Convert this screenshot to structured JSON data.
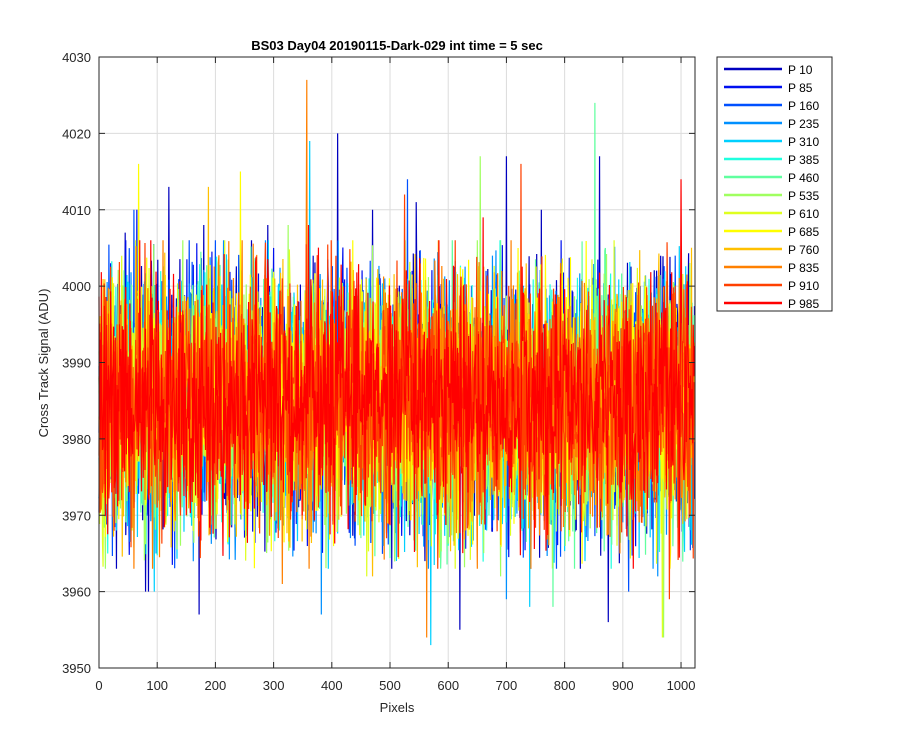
{
  "chart_data": {
    "type": "line",
    "title": "BS03 Day04 20190115-Dark-029 int time = 5 sec",
    "xlabel": "Pixels",
    "ylabel": "Cross Track Signal (ADU)",
    "xlim": [
      0,
      1024
    ],
    "ylim": [
      3950,
      4030
    ],
    "xticks": [
      0,
      100,
      200,
      300,
      400,
      500,
      600,
      700,
      800,
      900,
      1000
    ],
    "yticks": [
      3950,
      3960,
      3970,
      3980,
      3990,
      4000,
      4010,
      4020,
      4030
    ],
    "grid": true,
    "legend_position": "outside-top-right",
    "noise_model": {
      "center": 3985,
      "spread_sd": 8,
      "n_points": 1024
    },
    "series": [
      {
        "name": "P 10",
        "color": "#0000BF",
        "seed": 11,
        "spikes": [
          [
            172,
            3957
          ],
          [
            80,
            3960
          ],
          [
            85,
            3960
          ],
          [
            410,
            4020
          ],
          [
            700,
            4017
          ],
          [
            860,
            4017
          ],
          [
            620,
            3955
          ],
          [
            875,
            3956
          ],
          [
            45,
            4007
          ],
          [
            120,
            4013
          ],
          [
            180,
            4008
          ],
          [
            290,
            4008
          ],
          [
            470,
            4010
          ],
          [
            545,
            4011
          ],
          [
            760,
            4010
          ],
          [
            560,
            3964
          ]
        ]
      },
      {
        "name": "P 85",
        "color": "#0010F0",
        "seed": 23,
        "spikes": [
          [
            20,
            4003
          ],
          [
            65,
            4010
          ],
          [
            300,
            4005
          ],
          [
            480,
            4001
          ],
          [
            640,
            4000
          ],
          [
            930,
            4000
          ]
        ]
      },
      {
        "name": "P 160",
        "color": "#0050FF",
        "seed": 37,
        "spikes": [
          [
            60,
            4010
          ],
          [
            200,
            4006
          ],
          [
            530,
            4014
          ],
          [
            990,
            4004
          ],
          [
            910,
            3960
          ],
          [
            440,
            3966
          ]
        ]
      },
      {
        "name": "P 235",
        "color": "#0090FF",
        "seed": 41,
        "spikes": [
          [
            382,
            3957
          ],
          [
            250,
            3968
          ],
          [
            700,
            3959
          ],
          [
            960,
            3962
          ],
          [
            590,
            3971
          ],
          [
            98,
            3965
          ]
        ]
      },
      {
        "name": "P 310",
        "color": "#00D0FF",
        "seed": 53,
        "spikes": [
          [
            362,
            4019
          ],
          [
            95,
            3960
          ],
          [
            570,
            3953
          ],
          [
            740,
            3958
          ],
          [
            30,
            3968
          ],
          [
            835,
            3964
          ]
        ]
      },
      {
        "name": "P 385",
        "color": "#20FFDF",
        "seed": 67,
        "spikes": [
          [
            15,
            3965
          ],
          [
            310,
            3968
          ],
          [
            600,
            3966
          ],
          [
            880,
            3963
          ],
          [
            500,
            3969
          ]
        ]
      },
      {
        "name": "P 460",
        "color": "#60FF9F",
        "seed": 79,
        "spikes": [
          [
            852,
            4024
          ],
          [
            10,
            3971
          ],
          [
            450,
            3967
          ],
          [
            780,
            3958
          ],
          [
            670,
            3970
          ]
        ]
      },
      {
        "name": "P 535",
        "color": "#A0FF60",
        "seed": 83,
        "spikes": [
          [
            655,
            4017
          ],
          [
            325,
            4008
          ],
          [
            970,
            3954
          ],
          [
            140,
            3966
          ],
          [
            690,
            3962
          ]
        ]
      },
      {
        "name": "P 610",
        "color": "#DFFF20",
        "seed": 97,
        "spikes": [
          [
            968,
            3954
          ],
          [
            460,
            3962
          ],
          [
            890,
            3966
          ],
          [
            250,
            3972
          ]
        ]
      },
      {
        "name": "P 685",
        "color": "#FFFF00",
        "seed": 101,
        "spikes": [
          [
            68,
            4016
          ],
          [
            243,
            4015
          ],
          [
            190,
            3968
          ],
          [
            720,
            4005
          ],
          [
            940,
            4000
          ]
        ]
      },
      {
        "name": "P 760",
        "color": "#FFC000",
        "seed": 113,
        "spikes": [
          [
            188,
            4013
          ],
          [
            470,
            3962
          ],
          [
            610,
            3966
          ],
          [
            30,
            3976
          ]
        ]
      },
      {
        "name": "P 835",
        "color": "#FF8000",
        "seed": 127,
        "spikes": [
          [
            357,
            4027
          ],
          [
            563,
            3954
          ],
          [
            315,
            3961
          ],
          [
            60,
            3963
          ],
          [
            760,
            3973
          ]
        ]
      },
      {
        "name": "P 910",
        "color": "#FF4000",
        "seed": 131,
        "spikes": [
          [
            725,
            4016
          ],
          [
            525,
            4012
          ],
          [
            980,
            3959
          ],
          [
            100,
            3971
          ]
        ]
      },
      {
        "name": "P 985",
        "color": "#FF0000",
        "seed": 139,
        "spikes": [
          [
            1000,
            4014
          ],
          [
            360,
            4008
          ],
          [
            660,
            4009
          ],
          [
            150,
            3970
          ]
        ]
      }
    ]
  }
}
